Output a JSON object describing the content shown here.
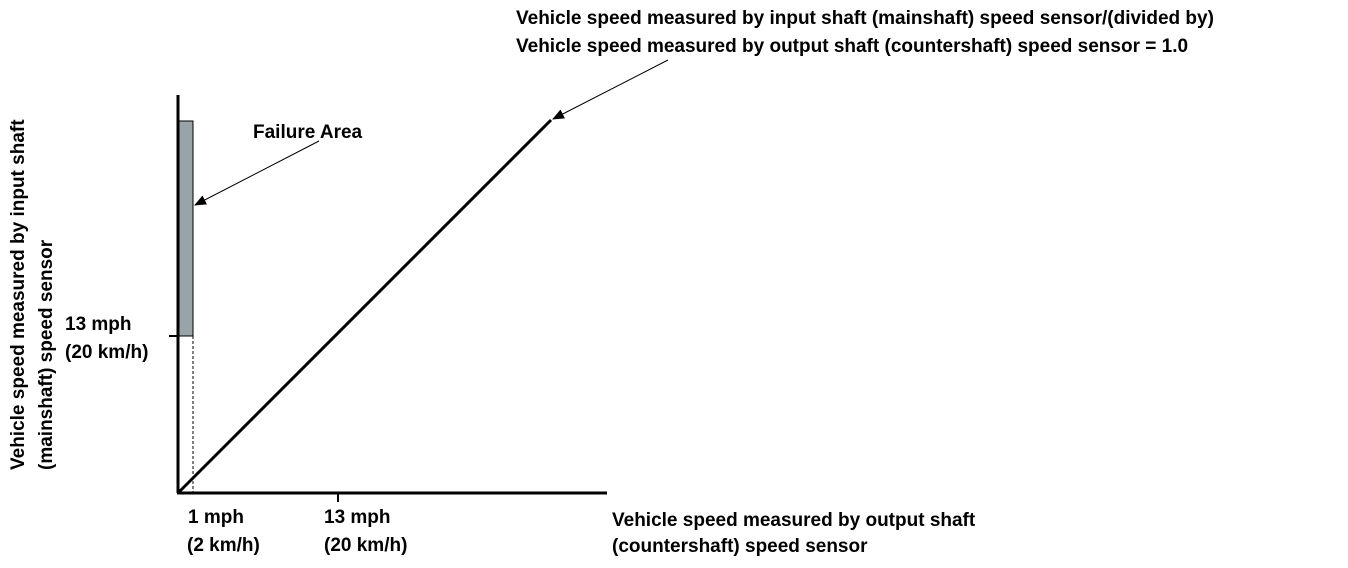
{
  "annotation": {
    "ratio_line1": "Vehicle speed measured by input shaft (mainshaft) speed sensor/(divided by)",
    "ratio_line2": "Vehicle speed measured by output shaft (countershaft) speed sensor = 1.0",
    "failure_area": "Failure Area"
  },
  "y_axis": {
    "label_line1": "Vehicle speed measured by input shaft",
    "label_line2": "(mainshaft) speed sensor",
    "tick_mph": "13 mph",
    "tick_kmh": "(20 km/h)"
  },
  "x_axis": {
    "label_line1": "Vehicle speed measured by output shaft",
    "label_line2": "(countershaft) speed sensor",
    "tick1_mph": "1 mph",
    "tick1_kmh": "(2 km/h)",
    "tick2_mph": "13 mph",
    "tick2_kmh": "(20 km/h)"
  },
  "colors": {
    "failure_fill": "#98a4a8",
    "line": "#000000"
  }
}
